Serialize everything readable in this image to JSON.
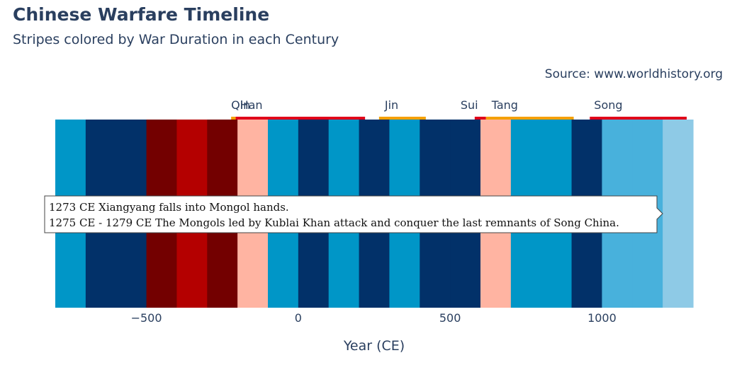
{
  "header": {
    "title": "Chinese Warfare Timeline",
    "subtitle": "Stripes colored by War Duration in each Century",
    "source": "Source: www.worldhistory.org"
  },
  "colors": {
    "heat_scale": [
      "#8ecae6",
      "#48b1dc",
      "#0096c7",
      "#023e8a",
      "#023169",
      "#ffb4a2",
      "#b40000",
      "#730000"
    ],
    "dynasty_short": "#f4a000",
    "dynasty_long": "#e0001a"
  },
  "tooltip": {
    "lines": [
      "1273 CE Xiangyang falls into Mongol hands.",
      "1275 CE - 1279 CE The Mongols led by Kublai Khan attack and conquer the last remnants of Song China."
    ]
  },
  "chart_data": {
    "type": "heatmap",
    "title": "Chinese Warfare Timeline",
    "subtitle": "Stripes colored by War Duration in each Century",
    "xlabel": "Year (CE)",
    "ylabel": "",
    "xlim": [
      -800,
      1300
    ],
    "xticks": [
      -500,
      0,
      500,
      1000
    ],
    "xtick_labels": [
      "−500",
      "0",
      "500",
      "1000"
    ],
    "stripes": [
      {
        "start": -800,
        "end": -700,
        "color": "#0096c7"
      },
      {
        "start": -700,
        "end": -600,
        "color": "#023169"
      },
      {
        "start": -600,
        "end": -500,
        "color": "#023169"
      },
      {
        "start": -500,
        "end": -400,
        "color": "#730000"
      },
      {
        "start": -400,
        "end": -300,
        "color": "#b40000"
      },
      {
        "start": -300,
        "end": -200,
        "color": "#730000"
      },
      {
        "start": -200,
        "end": -100,
        "color": "#ffb4a2"
      },
      {
        "start": -100,
        "end": 0,
        "color": "#0096c7"
      },
      {
        "start": 0,
        "end": 100,
        "color": "#023169"
      },
      {
        "start": 100,
        "end": 200,
        "color": "#0096c7"
      },
      {
        "start": 200,
        "end": 300,
        "color": "#023169"
      },
      {
        "start": 300,
        "end": 400,
        "color": "#0096c7"
      },
      {
        "start": 400,
        "end": 500,
        "color": "#023169"
      },
      {
        "start": 500,
        "end": 600,
        "color": "#023169"
      },
      {
        "start": 600,
        "end": 700,
        "color": "#ffb4a2"
      },
      {
        "start": 700,
        "end": 800,
        "color": "#0096c7"
      },
      {
        "start": 800,
        "end": 900,
        "color": "#0096c7"
      },
      {
        "start": 900,
        "end": 1000,
        "color": "#023169"
      },
      {
        "start": 1000,
        "end": 1100,
        "color": "#48b1dc"
      },
      {
        "start": 1100,
        "end": 1200,
        "color": "#48b1dc"
      },
      {
        "start": 1200,
        "end": 1300,
        "color": "#8ecae6"
      }
    ],
    "dynasties": [
      {
        "name": "Qin",
        "start": -221,
        "end": -206,
        "color": "#f4a000"
      },
      {
        "name": "Han",
        "start": -206,
        "end": 220,
        "color": "#e0001a"
      },
      {
        "name": "Jin",
        "start": 266,
        "end": 420,
        "color": "#f4a000"
      },
      {
        "name": "Sui",
        "start": 581,
        "end": 618,
        "color": "#e0001a"
      },
      {
        "name": "Tang",
        "start": 618,
        "end": 907,
        "color": "#f4a000"
      },
      {
        "name": "Song",
        "start": 960,
        "end": 1279,
        "color": "#e0001a"
      }
    ]
  }
}
